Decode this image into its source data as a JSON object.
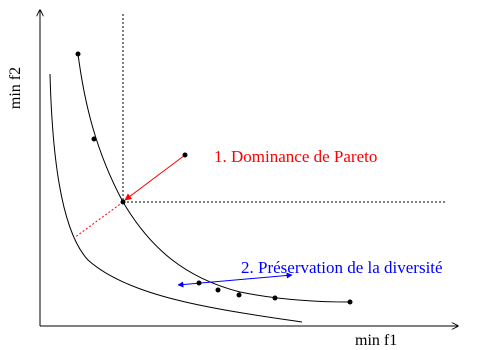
{
  "axes": {
    "x_label": "min f1",
    "y_label": "min f2"
  },
  "annotations": {
    "pareto_dominance": "1. Dominance de Pareto",
    "diversity_preservation": "2. Préservation de la diversité"
  },
  "colors": {
    "axis": "#000000",
    "curve": "#000000",
    "pareto_annotation": "#ff0000",
    "diversity_annotation": "#0000ff"
  }
}
